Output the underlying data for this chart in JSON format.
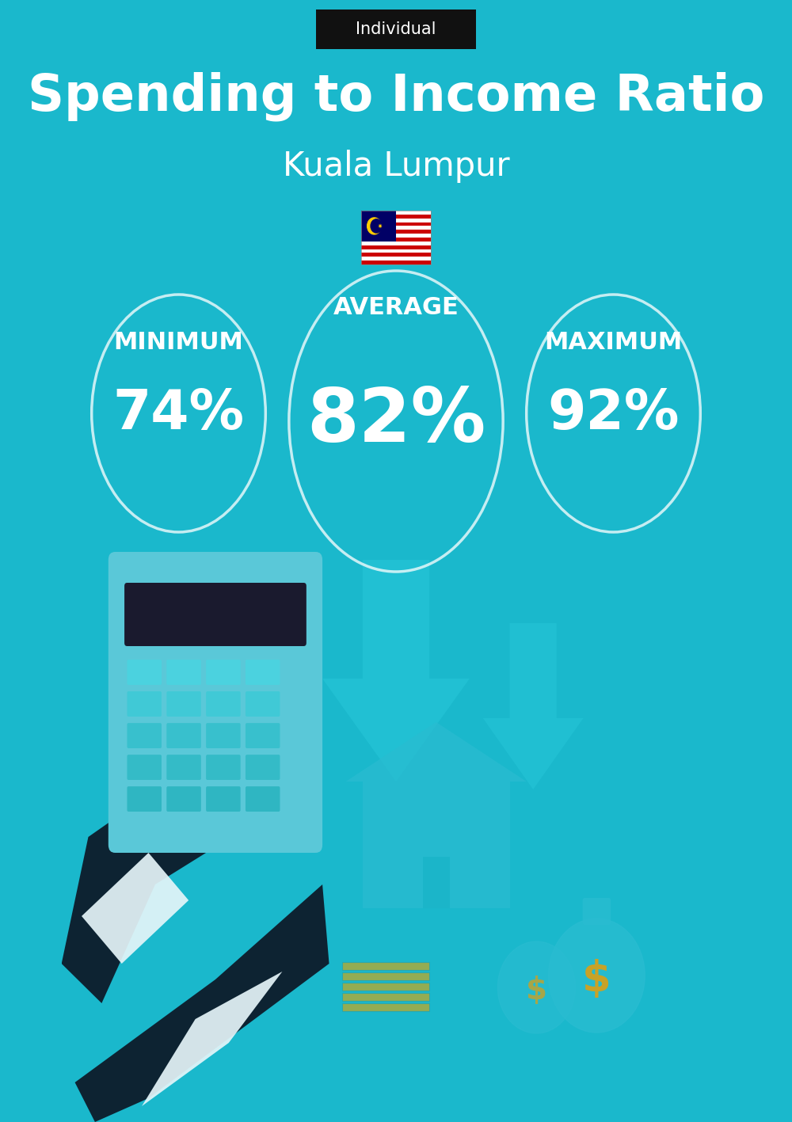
{
  "title": "Spending to Income Ratio",
  "subtitle": "Kuala Lumpur",
  "tag_label": "Individual",
  "bg_color": "#1ab8cc",
  "text_color": "#ffffff",
  "tag_bg": "#111111",
  "average_label": "AVERAGE",
  "minimum_label": "MINIMUM",
  "maximum_label": "MAXIMUM",
  "min_value": "74%",
  "avg_value": "82%",
  "max_value": "92%",
  "title_fontsize": 46,
  "subtitle_fontsize": 30,
  "label_fontsize": 22,
  "value_fontsize_small": 50,
  "value_fontsize_large": 68,
  "figsize": [
    10.0,
    14.17
  ]
}
